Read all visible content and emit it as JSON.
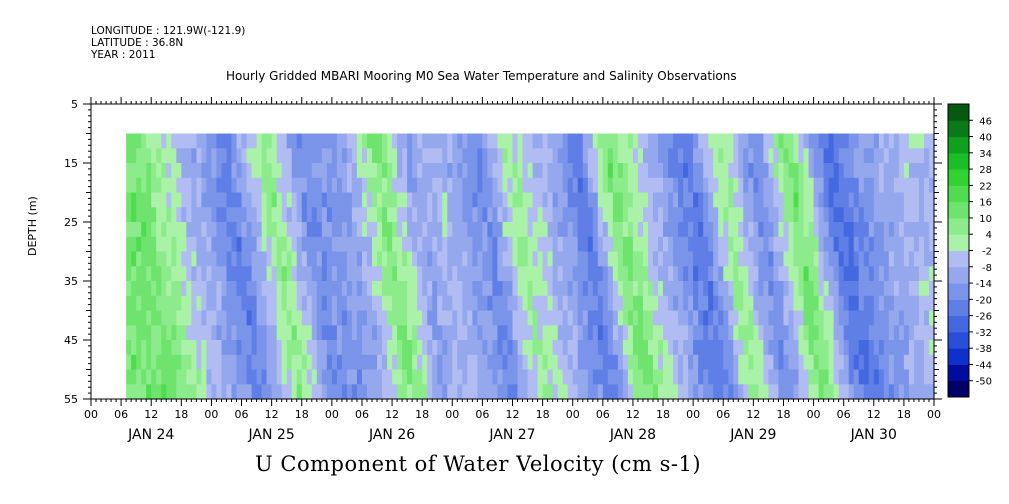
{
  "header": {
    "longitude": "LONGITUDE : 121.9W(-121.9)",
    "latitude": "LATITUDE : 36.8N",
    "year": "YEAR : 2011"
  },
  "chart_data": {
    "type": "heatmap",
    "title": "Hourly Gridded MBARI Mooring M0 Sea Water Temperature and Salinity Observations",
    "xlabel": "U Component of Water Velocity (cm s-1)",
    "ylabel": "DEPTH (m)",
    "ylim": [
      5,
      55
    ],
    "y_inverted": true,
    "y_ticks": [
      5,
      15,
      25,
      35,
      45,
      55
    ],
    "x_range_hours": [
      0,
      168
    ],
    "x_hour_labels": [
      "00",
      "06",
      "12",
      "18",
      "00",
      "06",
      "12",
      "18",
      "00",
      "06",
      "12",
      "18",
      "00",
      "06",
      "12",
      "18",
      "00",
      "06",
      "12",
      "18",
      "00",
      "06",
      "12",
      "18",
      "00",
      "06",
      "12",
      "18",
      "00"
    ],
    "x_day_labels": [
      "JAN 24",
      "JAN 25",
      "JAN 26",
      "JAN 27",
      "JAN 28",
      "JAN 29",
      "JAN 30"
    ],
    "data_depth_range": [
      10,
      55
    ],
    "data_start_hour": 7,
    "colorbar": {
      "levels": [
        -50,
        -44,
        -38,
        -32,
        -26,
        -20,
        -14,
        -8,
        -2,
        4,
        10,
        16,
        22,
        28,
        34,
        40,
        46
      ],
      "labels": [
        "46",
        "40",
        "34",
        "28",
        "22",
        "16",
        "10",
        "4",
        "-2",
        "-8",
        "-14",
        "-20",
        "-26",
        "-32",
        "-38",
        "-44",
        "-50"
      ],
      "colors": [
        "#000066",
        "#000c9e",
        "#1030cc",
        "#2a4ed8",
        "#4468e0",
        "#5f7fe6",
        "#7a94ea",
        "#95a8ee",
        "#b0bcf2",
        "#aaf2a8",
        "#8cec8c",
        "#6ee46e",
        "#50dc50",
        "#32d232",
        "#1cbe28",
        "#10a020",
        "#0a7a18",
        "#065a10"
      ]
    },
    "series": [
      {
        "name": "",
        "x_hours": [
          8,
          16,
          26,
          34,
          40,
          49,
          56,
          62,
          68,
          76,
          82,
          90,
          96,
          102,
          110,
          118,
          124,
          131,
          138,
          146,
          152,
          160
        ],
        "values": [
          12,
          -4,
          -22,
          8,
          -18,
          -14,
          10,
          -12,
          -6,
          -20,
          4,
          -10,
          -24,
          12,
          -8,
          -26,
          6,
          -20,
          14,
          -28,
          -16,
          -6
        ]
      }
    ]
  }
}
